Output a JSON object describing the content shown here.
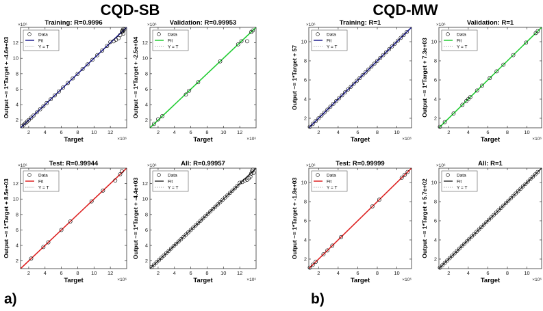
{
  "groups": [
    {
      "title": "CQD-SB",
      "label": "a)"
    },
    {
      "title": "CQD-MW",
      "label": "b)"
    }
  ],
  "legend": {
    "data": "Data",
    "fit": "Fit",
    "yt": "Y = T"
  },
  "colors": {
    "training": "#1f1f8f",
    "validation": "#22cc33",
    "test": "#dd2222",
    "all": "#333333",
    "ref": "#888888",
    "marker": "#000000"
  },
  "chart_data": [
    {
      "type": "scatter",
      "group": "CQD-SB",
      "title": "Training: R=0.9996",
      "xlabel": "Target",
      "ylabel": "Output ~= 1*Target + -4.6e+03",
      "exponent": "×10⁶",
      "xlim": [
        1,
        14
      ],
      "ylim": [
        1,
        14
      ],
      "xticks": [
        2,
        4,
        6,
        8,
        10,
        12
      ],
      "yticks": [
        2,
        4,
        6,
        8,
        10,
        12
      ],
      "fit_color": "#1f1f8f",
      "points": [
        [
          1.2,
          1.2
        ],
        [
          1.4,
          1.4
        ],
        [
          1.6,
          1.6
        ],
        [
          1.8,
          1.8
        ],
        [
          2,
          2
        ],
        [
          2.3,
          2.3
        ],
        [
          2.6,
          2.6
        ],
        [
          3,
          3
        ],
        [
          3.4,
          3.4
        ],
        [
          3.8,
          3.8
        ],
        [
          4.2,
          4.2
        ],
        [
          4.7,
          4.7
        ],
        [
          5.2,
          5.2
        ],
        [
          5.7,
          5.7
        ],
        [
          6.2,
          6.2
        ],
        [
          6.8,
          6.8
        ],
        [
          7.4,
          7.4
        ],
        [
          8,
          8
        ],
        [
          8.6,
          8.6
        ],
        [
          9.2,
          9.2
        ],
        [
          9.8,
          9.8
        ],
        [
          10.4,
          10.4
        ],
        [
          11,
          11
        ],
        [
          11.6,
          11.6
        ],
        [
          12,
          12.1
        ],
        [
          12.4,
          12.2
        ],
        [
          12.7,
          12.4
        ],
        [
          13,
          12.6
        ],
        [
          13.2,
          13
        ],
        [
          13.4,
          13.4
        ],
        [
          13.5,
          13.6
        ],
        [
          13.6,
          13.2
        ],
        [
          13.7,
          13.7
        ],
        [
          13.6,
          13.8
        ],
        [
          13.5,
          13.5
        ]
      ]
    },
    {
      "type": "scatter",
      "group": "CQD-SB",
      "title": "Validation: R=0.99953",
      "xlabel": "Target",
      "ylabel": "Output ~= 1*Target + -2.5e+04",
      "exponent": "×10⁶",
      "xlim": [
        1,
        14
      ],
      "ylim": [
        1,
        14
      ],
      "xticks": [
        2,
        4,
        6,
        8,
        10,
        12
      ],
      "yticks": [
        2,
        4,
        6,
        8,
        10,
        12
      ],
      "fit_color": "#22cc33",
      "points": [
        [
          1.5,
          1.5
        ],
        [
          2,
          2.1
        ],
        [
          2.5,
          2.5
        ],
        [
          5.4,
          5.3
        ],
        [
          5.8,
          5.8
        ],
        [
          6.9,
          6.9
        ],
        [
          9.6,
          9.6
        ],
        [
          11.8,
          11.8
        ],
        [
          12.2,
          12.2
        ],
        [
          12.9,
          12.2
        ],
        [
          13.4,
          13.4
        ],
        [
          13.6,
          13.6
        ]
      ]
    },
    {
      "type": "scatter",
      "group": "CQD-SB",
      "title": "Test: R=0.99944",
      "xlabel": "Target",
      "ylabel": "Output ~= 1*Target + 8.5e+03",
      "exponent": "×10⁶",
      "xlim": [
        1,
        14
      ],
      "ylim": [
        1,
        14
      ],
      "xticks": [
        2,
        4,
        6,
        8,
        10,
        12
      ],
      "yticks": [
        2,
        4,
        6,
        8,
        10,
        12
      ],
      "fit_color": "#dd2222",
      "points": [
        [
          2.3,
          2.3
        ],
        [
          3.8,
          3.8
        ],
        [
          4.4,
          4.4
        ],
        [
          6,
          6
        ],
        [
          7.1,
          7.1
        ],
        [
          9.7,
          9.7
        ],
        [
          11.1,
          11.1
        ],
        [
          12.6,
          12.4
        ],
        [
          13.2,
          13.2
        ],
        [
          13.4,
          13.6
        ]
      ]
    },
    {
      "type": "scatter",
      "group": "CQD-SB",
      "title": "All: R=0.99957",
      "xlabel": "Target",
      "ylabel": "Output ~= 1*Target + -4.4e+03",
      "exponent": "×10⁶",
      "xlim": [
        1,
        14
      ],
      "ylim": [
        1,
        14
      ],
      "xticks": [
        2,
        4,
        6,
        8,
        10,
        12
      ],
      "yticks": [
        2,
        4,
        6,
        8,
        10,
        12
      ],
      "fit_color": "#333333",
      "points": [
        [
          1.2,
          1.2
        ],
        [
          1.5,
          1.5
        ],
        [
          1.8,
          1.8
        ],
        [
          2.1,
          2.1
        ],
        [
          2.4,
          2.4
        ],
        [
          2.7,
          2.7
        ],
        [
          3,
          3
        ],
        [
          3.3,
          3.3
        ],
        [
          3.6,
          3.6
        ],
        [
          3.9,
          3.9
        ],
        [
          4.2,
          4.2
        ],
        [
          4.5,
          4.5
        ],
        [
          4.8,
          4.8
        ],
        [
          5.1,
          5.1
        ],
        [
          5.4,
          5.4
        ],
        [
          5.7,
          5.7
        ],
        [
          6,
          6
        ],
        [
          6.3,
          6.3
        ],
        [
          6.6,
          6.6
        ],
        [
          6.9,
          6.9
        ],
        [
          7.2,
          7.2
        ],
        [
          7.5,
          7.5
        ],
        [
          7.8,
          7.8
        ],
        [
          8.1,
          8.1
        ],
        [
          8.4,
          8.4
        ],
        [
          8.7,
          8.7
        ],
        [
          9,
          9
        ],
        [
          9.3,
          9.3
        ],
        [
          9.6,
          9.6
        ],
        [
          9.9,
          9.9
        ],
        [
          10.2,
          10.2
        ],
        [
          10.5,
          10.5
        ],
        [
          10.8,
          10.8
        ],
        [
          11.1,
          11.1
        ],
        [
          11.4,
          11.4
        ],
        [
          11.7,
          11.7
        ],
        [
          12,
          12.1
        ],
        [
          12.3,
          12.2
        ],
        [
          12.6,
          12.4
        ],
        [
          12.9,
          12.5
        ],
        [
          13.1,
          12.7
        ],
        [
          13.3,
          12.9
        ],
        [
          13.4,
          13.3
        ],
        [
          13.5,
          13.6
        ],
        [
          13.6,
          13.8
        ],
        [
          13.7,
          13.4
        ]
      ]
    },
    {
      "type": "scatter",
      "group": "CQD-MW",
      "title": "Training: R=1",
      "xlabel": "Target",
      "ylabel": "Output ~= 1*Target + 57",
      "exponent": "×10⁶",
      "xlim": [
        1,
        11.5
      ],
      "ylim": [
        1,
        11.5
      ],
      "xticks": [
        2,
        4,
        6,
        8,
        10
      ],
      "yticks": [
        2,
        4,
        6,
        8,
        10
      ],
      "fit_color": "#1f1f8f",
      "points": [
        [
          1.1,
          1.1
        ],
        [
          1.4,
          1.4
        ],
        [
          1.7,
          1.7
        ],
        [
          2,
          2
        ],
        [
          2.3,
          2.3
        ],
        [
          2.6,
          2.6
        ],
        [
          2.9,
          2.9
        ],
        [
          3.2,
          3.2
        ],
        [
          3.5,
          3.5
        ],
        [
          3.8,
          3.8
        ],
        [
          4.1,
          4.1
        ],
        [
          4.4,
          4.4
        ],
        [
          4.7,
          4.7
        ],
        [
          5,
          5
        ],
        [
          5.3,
          5.3
        ],
        [
          5.6,
          5.6
        ],
        [
          5.9,
          5.9
        ],
        [
          6.2,
          6.2
        ],
        [
          6.5,
          6.5
        ],
        [
          6.8,
          6.8
        ],
        [
          7.1,
          7.1
        ],
        [
          7.4,
          7.4
        ],
        [
          7.7,
          7.7
        ],
        [
          8,
          8
        ],
        [
          8.3,
          8.3
        ],
        [
          8.6,
          8.6
        ],
        [
          8.9,
          8.9
        ],
        [
          9.2,
          9.2
        ],
        [
          9.5,
          9.5
        ],
        [
          9.8,
          9.8
        ],
        [
          10.1,
          10.1
        ],
        [
          10.4,
          10.4
        ],
        [
          10.7,
          10.7
        ],
        [
          11,
          11
        ]
      ]
    },
    {
      "type": "scatter",
      "group": "CQD-MW",
      "title": "Validation: R=1",
      "xlabel": "Target",
      "ylabel": "Output ~= 1*Target + 7.3e+03",
      "exponent": "×10⁶",
      "xlim": [
        1,
        11.5
      ],
      "ylim": [
        1,
        11.5
      ],
      "xticks": [
        2,
        4,
        6,
        8,
        10
      ],
      "yticks": [
        2,
        4,
        6,
        8,
        10
      ],
      "fit_color": "#22cc33",
      "points": [
        [
          1.1,
          1.1
        ],
        [
          1.6,
          1.6
        ],
        [
          2.5,
          2.5
        ],
        [
          3.4,
          3.4
        ],
        [
          3.8,
          3.8
        ],
        [
          4,
          4
        ],
        [
          4.2,
          4.2
        ],
        [
          4.9,
          4.9
        ],
        [
          5.4,
          5.4
        ],
        [
          6.2,
          6.2
        ],
        [
          6.9,
          6.9
        ],
        [
          7.6,
          7.6
        ],
        [
          8.6,
          8.6
        ],
        [
          9.9,
          9.9
        ],
        [
          10.9,
          10.9
        ],
        [
          11.1,
          11.1
        ]
      ]
    },
    {
      "type": "scatter",
      "group": "CQD-MW",
      "title": "Test: R=0.99999",
      "xlabel": "Target",
      "ylabel": "Output ~= 1*Target + -1.8e+03",
      "exponent": "×10⁶",
      "xlim": [
        1,
        11.5
      ],
      "ylim": [
        1,
        11.5
      ],
      "xticks": [
        2,
        4,
        6,
        8,
        10
      ],
      "yticks": [
        2,
        4,
        6,
        8,
        10
      ],
      "fit_color": "#dd2222",
      "points": [
        [
          1.1,
          1.1
        ],
        [
          1.4,
          1.4
        ],
        [
          1.7,
          1.7
        ],
        [
          2.5,
          2.5
        ],
        [
          2.9,
          2.9
        ],
        [
          3.4,
          3.4
        ],
        [
          4.3,
          4.3
        ],
        [
          7.5,
          7.5
        ],
        [
          8.2,
          8.2
        ],
        [
          10.5,
          10.5
        ],
        [
          10.8,
          10.8
        ],
        [
          11.1,
          11.1
        ]
      ]
    },
    {
      "type": "scatter",
      "group": "CQD-MW",
      "title": "All: R=1",
      "xlabel": "Target",
      "ylabel": "Output ~= 1*Target + 5.7e+02",
      "exponent": "×10⁶",
      "xlim": [
        1,
        11.5
      ],
      "ylim": [
        1,
        11.5
      ],
      "xticks": [
        2,
        4,
        6,
        8,
        10
      ],
      "yticks": [
        2,
        4,
        6,
        8,
        10
      ],
      "fit_color": "#333333",
      "points": [
        [
          1.1,
          1.1
        ],
        [
          1.35,
          1.35
        ],
        [
          1.6,
          1.6
        ],
        [
          1.85,
          1.85
        ],
        [
          2.1,
          2.1
        ],
        [
          2.35,
          2.35
        ],
        [
          2.6,
          2.6
        ],
        [
          2.85,
          2.85
        ],
        [
          3.1,
          3.1
        ],
        [
          3.35,
          3.35
        ],
        [
          3.6,
          3.6
        ],
        [
          3.85,
          3.85
        ],
        [
          4.1,
          4.1
        ],
        [
          4.35,
          4.35
        ],
        [
          4.6,
          4.6
        ],
        [
          4.85,
          4.85
        ],
        [
          5.1,
          5.1
        ],
        [
          5.35,
          5.35
        ],
        [
          5.6,
          5.6
        ],
        [
          5.85,
          5.85
        ],
        [
          6.1,
          6.1
        ],
        [
          6.35,
          6.35
        ],
        [
          6.6,
          6.6
        ],
        [
          6.85,
          6.85
        ],
        [
          7.1,
          7.1
        ],
        [
          7.35,
          7.35
        ],
        [
          7.6,
          7.6
        ],
        [
          7.85,
          7.85
        ],
        [
          8.1,
          8.1
        ],
        [
          8.35,
          8.35
        ],
        [
          8.6,
          8.6
        ],
        [
          8.85,
          8.85
        ],
        [
          9.1,
          9.1
        ],
        [
          9.35,
          9.35
        ],
        [
          9.6,
          9.6
        ],
        [
          9.85,
          9.85
        ],
        [
          10.1,
          10.1
        ],
        [
          10.35,
          10.35
        ],
        [
          10.6,
          10.6
        ],
        [
          10.85,
          10.85
        ],
        [
          11.1,
          11.1
        ]
      ]
    }
  ]
}
